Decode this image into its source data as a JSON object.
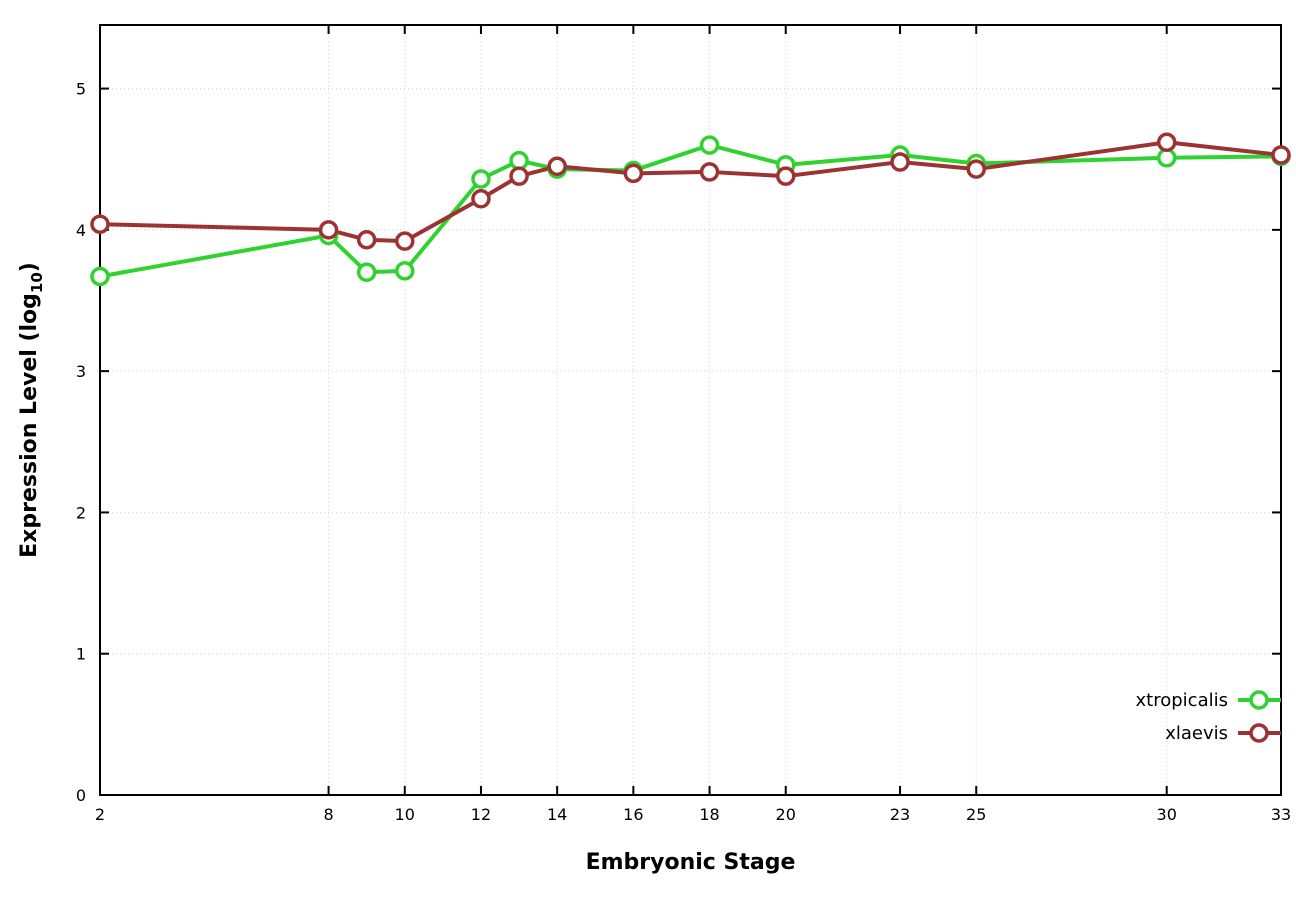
{
  "chart_data": {
    "type": "line",
    "title": "",
    "xlabel": "Embryonic Stage",
    "ylabel": "Expression Level (log10)",
    "ylabel_parts": {
      "prefix": "Expression Level (log",
      "sub": "10",
      "suffix": ")"
    },
    "x": [
      2,
      8,
      9,
      10,
      12,
      13,
      14,
      16,
      18,
      20,
      23,
      25,
      30,
      33
    ],
    "series": [
      {
        "name": "xtropicalis",
        "color": "#2fd32f",
        "values": [
          3.67,
          3.96,
          3.7,
          3.71,
          4.36,
          4.49,
          4.43,
          4.42,
          4.6,
          4.46,
          4.53,
          4.47,
          4.51,
          4.52
        ]
      },
      {
        "name": "xlaevis",
        "color": "#9d3232",
        "values": [
          4.04,
          4.0,
          3.93,
          3.92,
          4.22,
          4.38,
          4.45,
          4.4,
          4.41,
          4.38,
          4.48,
          4.43,
          4.62,
          4.53
        ]
      }
    ],
    "xticks": [
      2,
      8,
      10,
      12,
      14,
      16,
      18,
      20,
      23,
      25,
      30,
      33
    ],
    "yticks": [
      0,
      1,
      2,
      3,
      4,
      5
    ],
    "xlim": [
      2,
      33
    ],
    "ylim": [
      0,
      5.45
    ],
    "grid": true,
    "grid_color": "#d2d2d2",
    "border_color": "#000000",
    "marker": "open-circle",
    "legend_position": "bottom-right"
  }
}
